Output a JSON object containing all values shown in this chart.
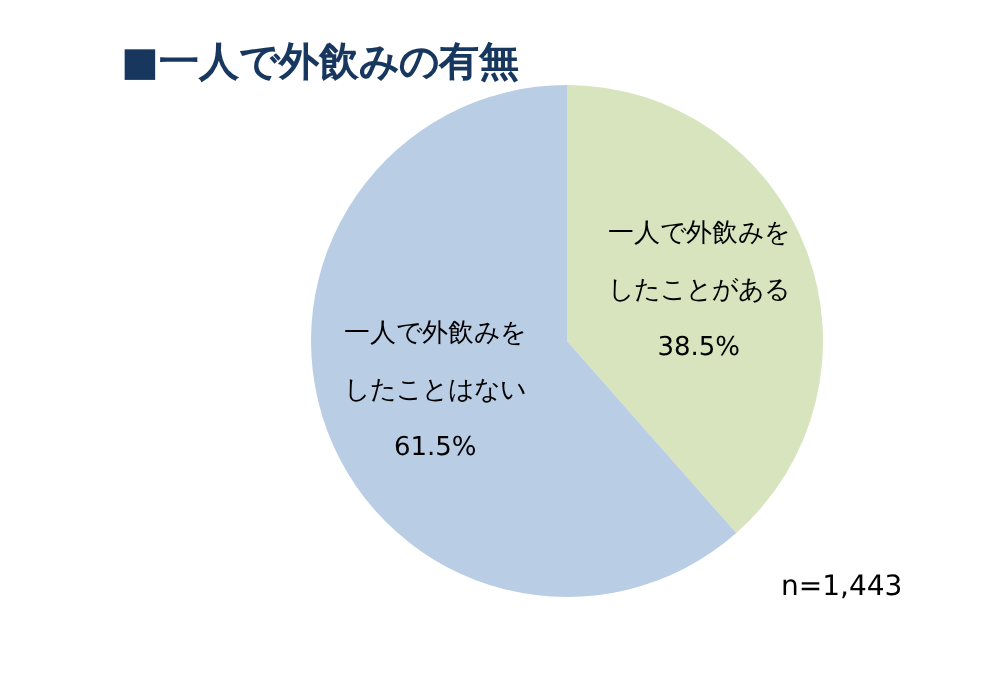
{
  "chart_data": {
    "type": "pie",
    "title": "■一人で外飲みの有無",
    "categories": [
      "一人で外飲みをしたことがある",
      "一人で外飲みをしたことはない"
    ],
    "values": [
      38.5,
      61.5
    ],
    "value_labels": [
      "38.5%",
      "61.5%"
    ],
    "colors": [
      "#d7e4bd",
      "#b9cde5"
    ],
    "annotations": [
      "n=1,443"
    ]
  }
}
